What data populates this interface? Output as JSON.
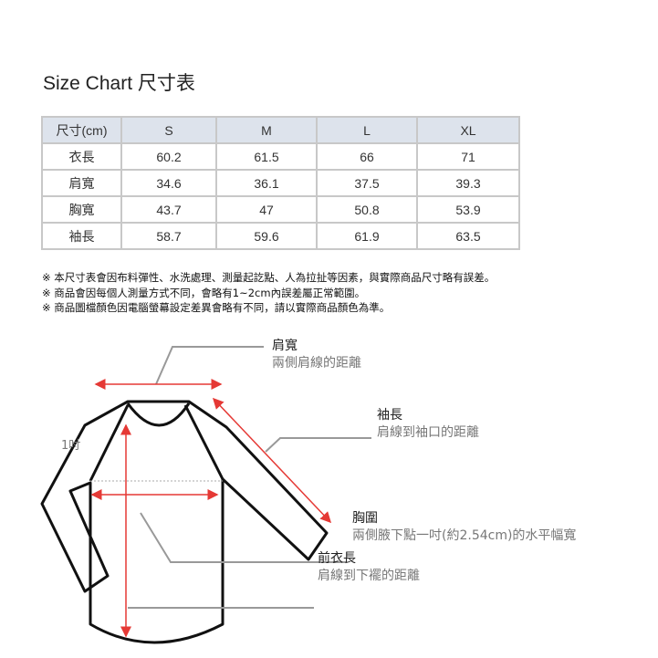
{
  "title": "Size Chart 尺寸表",
  "table": {
    "headers": [
      "尺寸(cm)",
      "S",
      "M",
      "L",
      "XL"
    ],
    "rows": [
      [
        "衣長",
        "60.2",
        "61.5",
        "66",
        "71"
      ],
      [
        "肩寬",
        "34.6",
        "36.1",
        "37.5",
        "39.3"
      ],
      [
        "胸寬",
        "43.7",
        "47",
        "50.8",
        "53.9"
      ],
      [
        "袖長",
        "58.7",
        "59.6",
        "61.9",
        "63.5"
      ]
    ]
  },
  "notes": [
    "※ 本尺寸表會因布料彈性、水洗處理、測量起訖點、人為拉扯等因素，與實際商品尺寸略有誤差。",
    "※ 商品會因每個人測量方式不同，會略有1~2cm內誤差屬正常範圍。",
    "※ 商品圖檔顏色因電腦螢幕設定差異會略有不同，請以實際商品顏色為準。"
  ],
  "diagram": {
    "inch_label": "1吋",
    "shoulder": {
      "title": "肩寬",
      "desc": "兩側肩線的距離"
    },
    "sleeve": {
      "title": "袖長",
      "desc": "肩線到袖口的距離"
    },
    "chest": {
      "title": "胸圍",
      "desc": "兩側腋下點一吋(約2.54cm)的水平幅寬"
    },
    "length": {
      "title": "前衣長",
      "desc": "肩線到下襬的距離"
    },
    "colors": {
      "arrow": "#e53935",
      "leader": "#999999",
      "outline": "#111111",
      "header_bg": "#dde3ec"
    }
  }
}
